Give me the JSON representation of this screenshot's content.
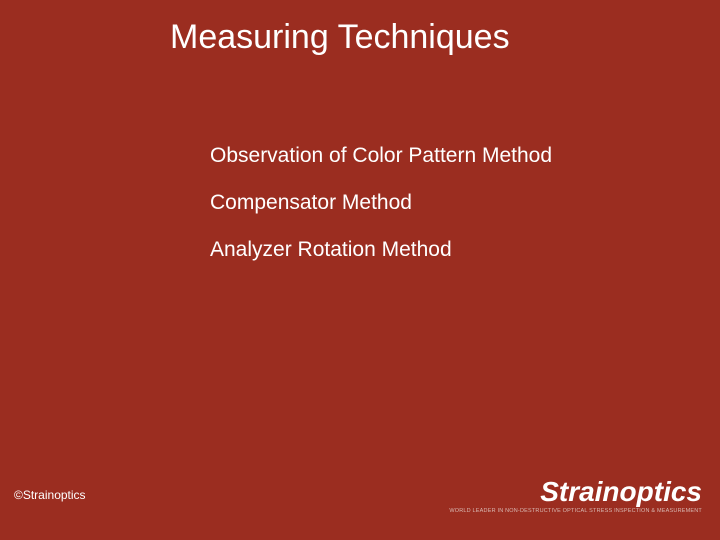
{
  "background_color": "#9b2d20",
  "text_color": "#ffffff",
  "title": {
    "text": "Measuring Techniques",
    "fontsize": 34,
    "weight": "normal"
  },
  "bullets": {
    "fontsize": 21,
    "items": [
      "Observation of Color Pattern Method",
      "Compensator Method",
      "Analyzer Rotation Method"
    ]
  },
  "copyright": "©Strainoptics",
  "logo": {
    "main": "Strainoptics",
    "tagline": "WORLD LEADER IN NON-DESTRUCTIVE OPTICAL STRESS INSPECTION & MEASUREMENT",
    "main_color": "#ffffff",
    "tagline_color": "#d9b9b3"
  }
}
